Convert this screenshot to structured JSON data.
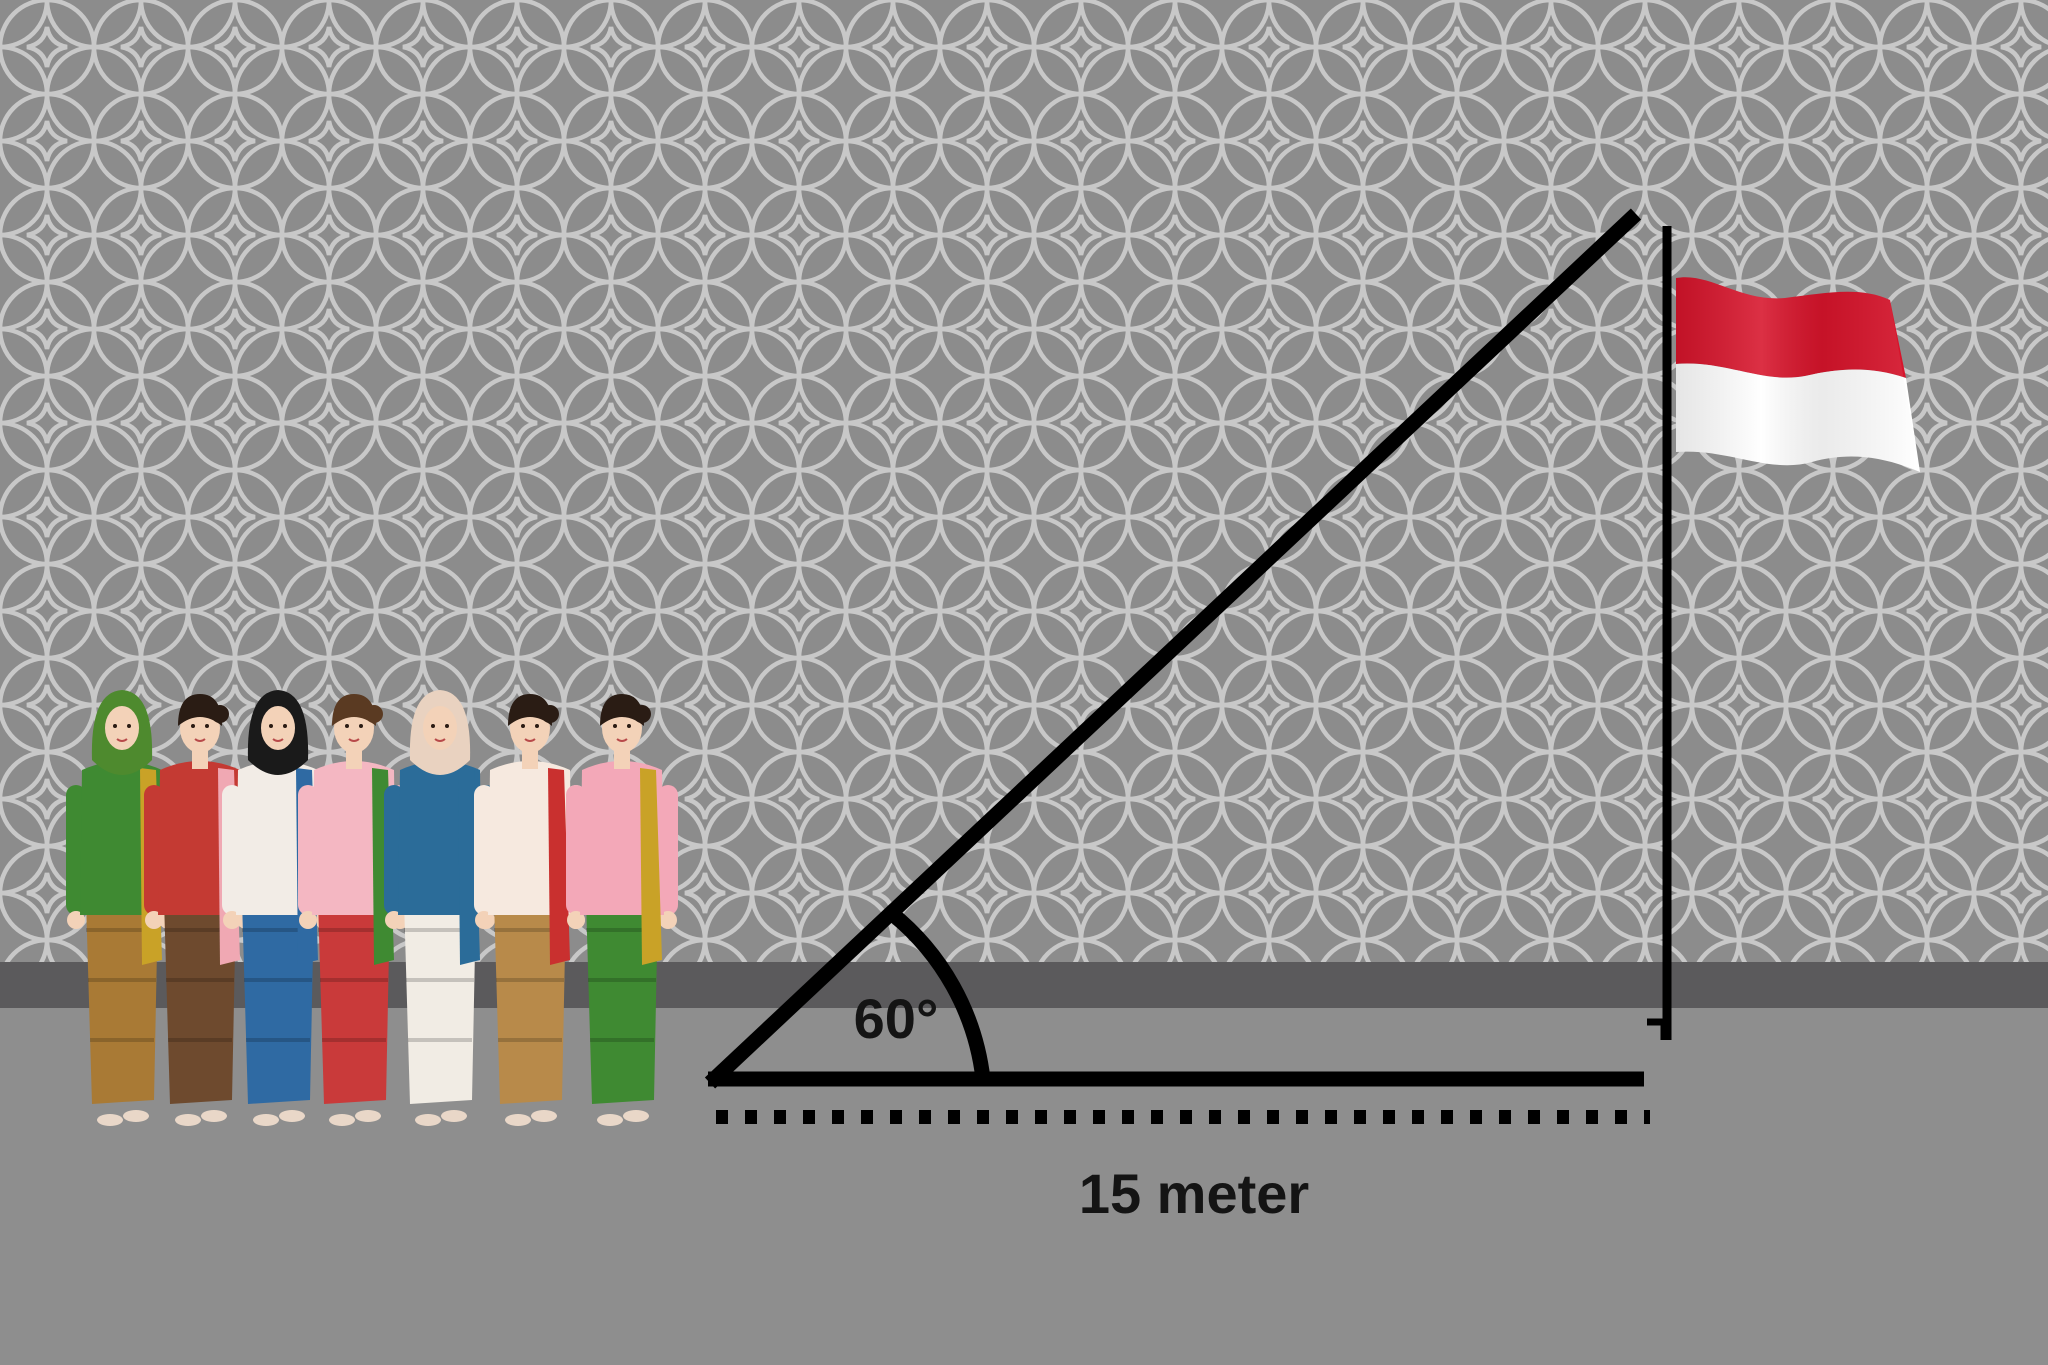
{
  "diagram": {
    "angle_label": "60°",
    "distance_label": "15 meter"
  },
  "flag": {
    "top_color": "#d7142b",
    "bottom_color": "#ffffff"
  },
  "colors": {
    "wall": "#8c8c8c",
    "pattern_line": "#c8c8c8",
    "baseboard": "#5b5a5c",
    "floor": "#8e8e8e",
    "ink": "#000000"
  },
  "people": [
    {
      "name": "woman-1",
      "hijab": true,
      "head": "#4e8a2e",
      "top": "#3f8a32",
      "sarong": "#a97a35",
      "scarf": "#c9a227"
    },
    {
      "name": "woman-2",
      "hijab": false,
      "head": "#2a1c14",
      "top": "#c43a33",
      "sarong": "#6e4a2e",
      "scarf": "#f0a8b3"
    },
    {
      "name": "woman-3",
      "hijab": true,
      "head": "#1a1a1a",
      "top": "#f2ece6",
      "sarong": "#2f6aa3",
      "scarf": "#2f6aa3"
    },
    {
      "name": "woman-4",
      "hijab": false,
      "head": "#5a3a22",
      "top": "#f4b7c2",
      "sarong": "#c93a3a",
      "scarf": "#3f8a32"
    },
    {
      "name": "woman-5",
      "hijab": true,
      "head": "#e9d2c0",
      "top": "#2b6c99",
      "sarong": "#f1ece4",
      "scarf": "#2b6c99"
    },
    {
      "name": "woman-6",
      "hijab": false,
      "head": "#2a1c14",
      "top": "#f6e9df",
      "sarong": "#b88a4a",
      "scarf": "#c9302f"
    },
    {
      "name": "woman-7",
      "hijab": false,
      "head": "#2a1c14",
      "top": "#f3a8b8",
      "sarong": "#3f8a32",
      "scarf": "#c9a227"
    }
  ]
}
